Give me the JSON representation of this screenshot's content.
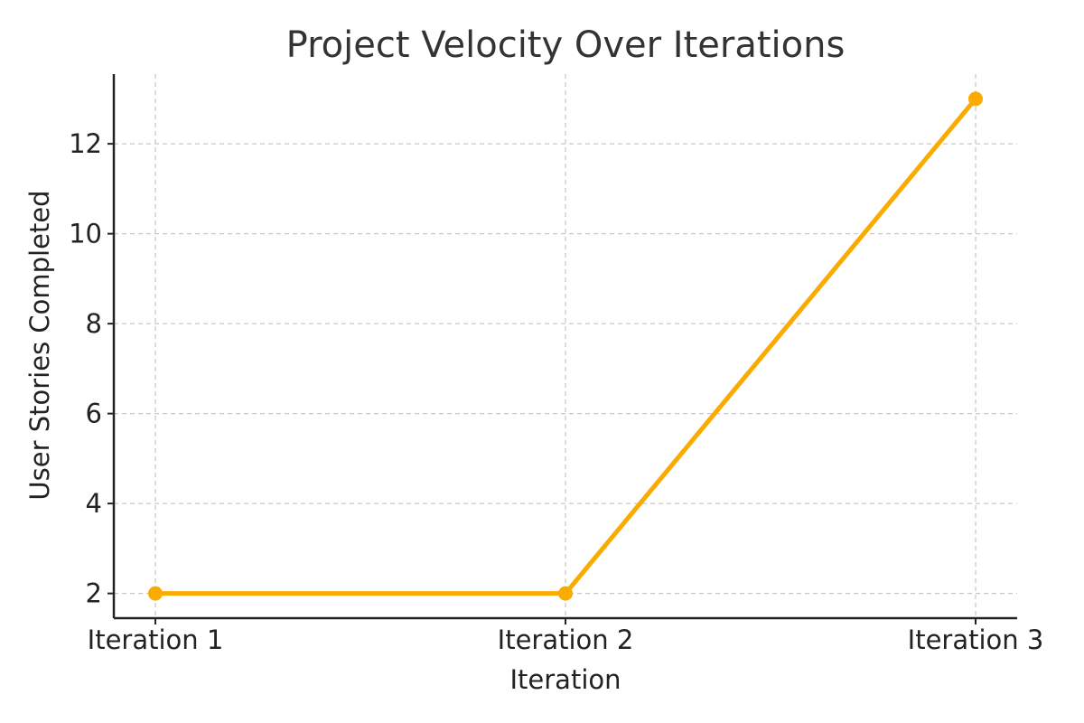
{
  "chart_data": {
    "type": "line",
    "title": "Project Velocity Over Iterations",
    "xlabel": "Iteration",
    "ylabel": "User Stories Completed",
    "categories": [
      "Iteration 1",
      "Iteration 2",
      "Iteration 3"
    ],
    "series": [
      {
        "values": [
          2,
          2,
          13
        ],
        "color": "#F9AB00"
      }
    ],
    "ylim": [
      1.45,
      13.55
    ],
    "yticks": [
      2,
      4,
      6,
      8,
      10,
      12
    ],
    "grid": true,
    "legend": "none"
  }
}
